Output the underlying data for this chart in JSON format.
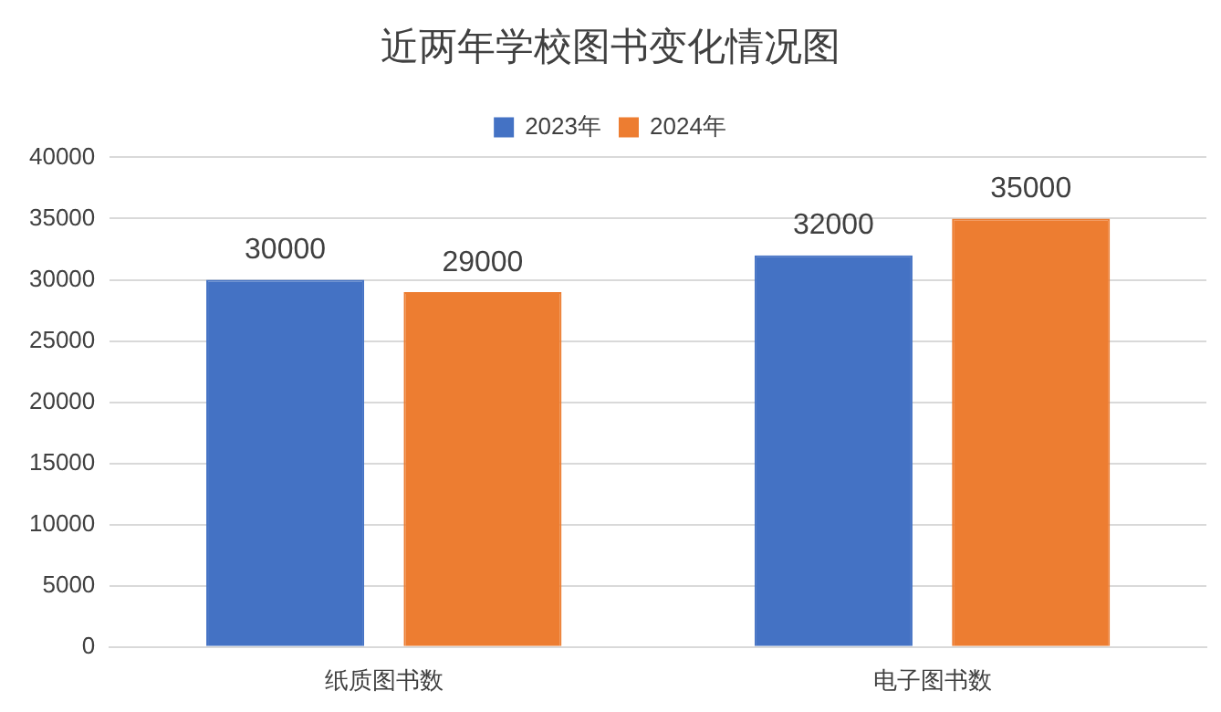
{
  "chart_data": {
    "type": "bar",
    "title": "近两年学校图书变化情况图",
    "categories": [
      "纸质图书数",
      "电子图书数"
    ],
    "series": [
      {
        "name": "2023年",
        "color": "#4472c4",
        "values": [
          30000,
          32000
        ]
      },
      {
        "name": "2024年",
        "color": "#ed7d31",
        "values": [
          29000,
          35000
        ]
      }
    ],
    "ylim": [
      0,
      40000
    ],
    "yticks": [
      0,
      5000,
      10000,
      15000,
      20000,
      25000,
      30000,
      35000,
      40000
    ],
    "grid": "y",
    "legend": "top",
    "data_labels": true
  }
}
